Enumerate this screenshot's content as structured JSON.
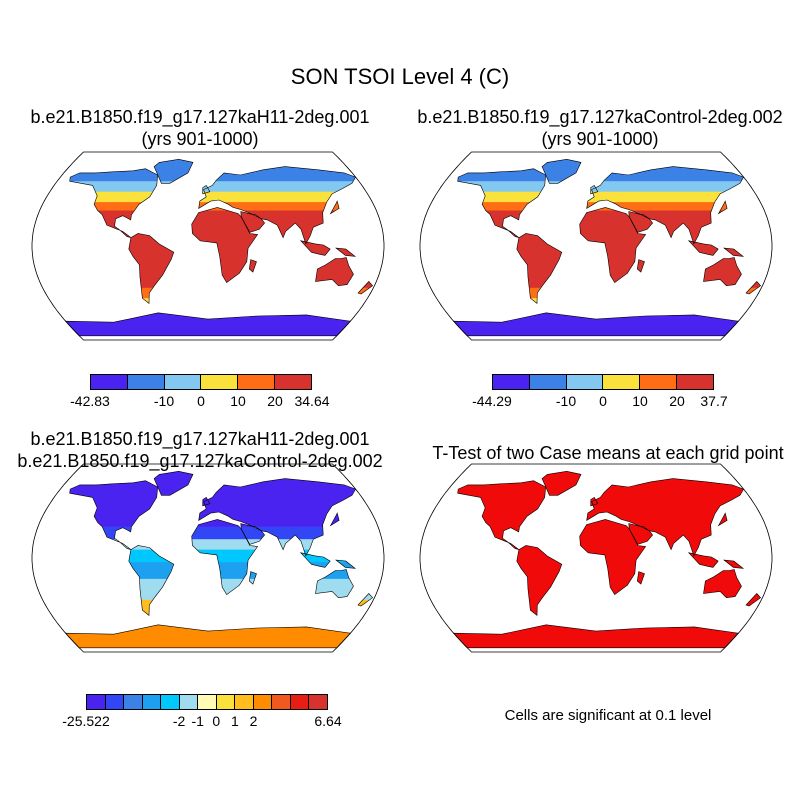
{
  "figure": {
    "title": "SON TSOI Level 4 (C)"
  },
  "panels": [
    {
      "title_line1": "b.e21.B1850.f19_g17.127kaH11-2deg.001",
      "title_line2": "(yrs 901-1000)",
      "kind": "field",
      "colorbar": {
        "colors": [
          "#4B23F0",
          "#3C82E6",
          "#82C8F0",
          "#FAE13C",
          "#FF6E14",
          "#D7322D"
        ],
        "labels": [
          "-42.83",
          "-10",
          "0",
          "10",
          "20",
          "34.64"
        ]
      }
    },
    {
      "title_line1": "b.e21.B1850.f19_g17.127kaControl-2deg.002",
      "title_line2": "(yrs 901-1000)",
      "kind": "field",
      "colorbar": {
        "colors": [
          "#4B23F0",
          "#3C82E6",
          "#82C8F0",
          "#FAE13C",
          "#FF6E14",
          "#D7322D"
        ],
        "labels": [
          "-44.29",
          "-10",
          "0",
          "10",
          "20",
          "37.7"
        ]
      }
    },
    {
      "title_line1": "b.e21.B1850.f19_g17.127kaH11-2deg.001",
      "title_line2": "b.e21.B1850.f19_g17.127kaControl-2deg.002",
      "kind": "difference",
      "colorbar": {
        "colors": [
          "#4B23F0",
          "#3246F5",
          "#3C82E6",
          "#1EA0F0",
          "#00C8FF",
          "#A0DCF0",
          "#FFFAB4",
          "#FAE13C",
          "#FFBE1E",
          "#FF8C00",
          "#F05A1E",
          "#E61E14",
          "#D7322D"
        ],
        "labels": [
          "-25.522",
          "-2",
          "-1",
          "0",
          "1",
          "2",
          "6.64"
        ]
      }
    },
    {
      "title_line1": "T-Test of two Case means at each grid point",
      "kind": "ttest",
      "note": "Cells are significant at 0.1 level"
    }
  ]
}
